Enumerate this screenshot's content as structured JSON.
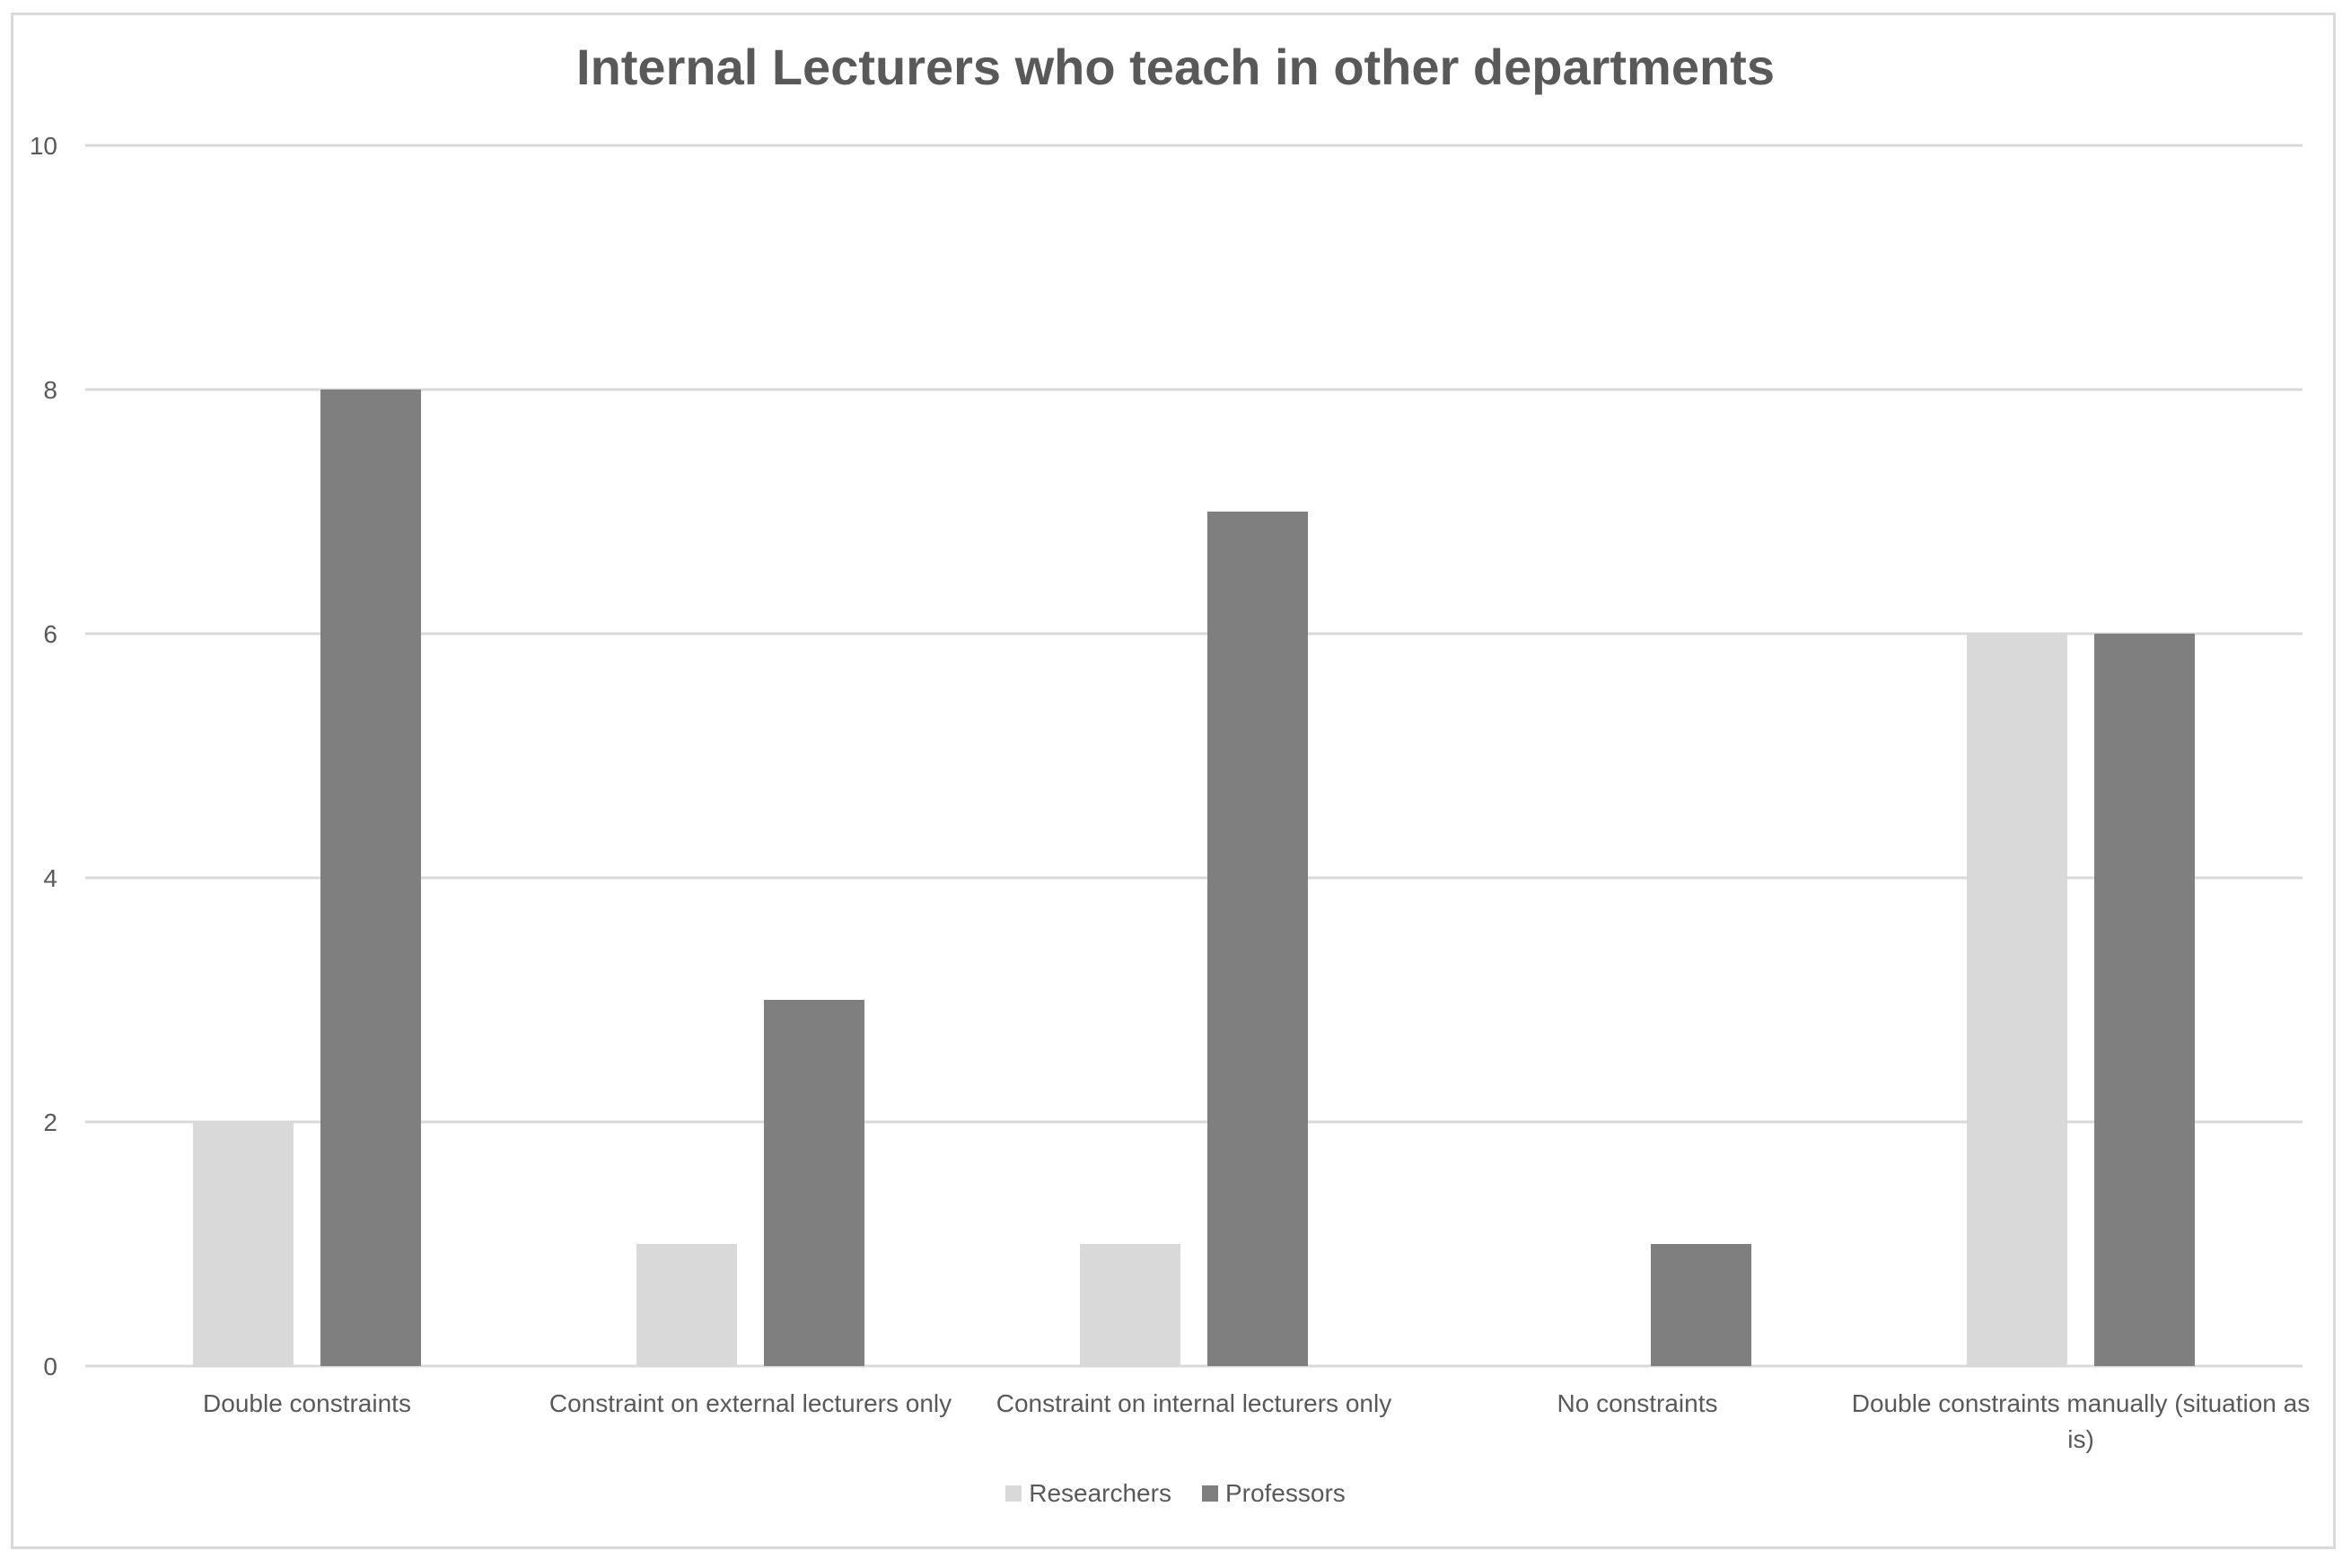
{
  "chart_data": {
    "type": "bar",
    "title": "Internal Lecturers who teach in other departments",
    "categories": [
      "Double constraints",
      "Constraint on external lecturers only",
      "Constraint on internal lecturers only",
      "No constraints",
      "Double constraints manually (situation as is)"
    ],
    "series": [
      {
        "name": "Researchers",
        "color": "#d9d9d9",
        "values": [
          2,
          1,
          1,
          0,
          6
        ]
      },
      {
        "name": "Professors",
        "color": "#7f7f7f",
        "values": [
          8,
          3,
          7,
          1,
          6
        ]
      }
    ],
    "ylim": [
      0,
      10
    ],
    "yticks": [
      "0",
      "2",
      "4",
      "6",
      "8",
      "10"
    ],
    "grid": true,
    "legend_position": "bottom"
  }
}
